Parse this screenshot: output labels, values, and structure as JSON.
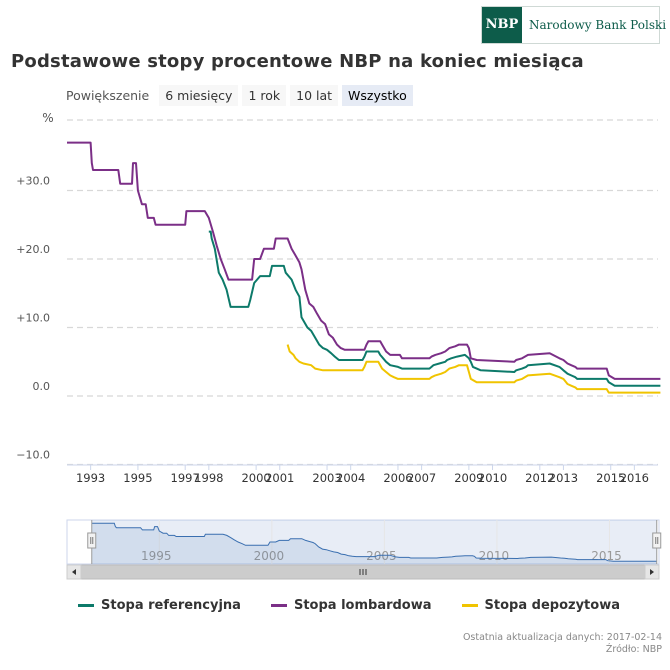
{
  "logo": {
    "abbr": "NBP",
    "name": "Narodowy Bank Polski"
  },
  "title": "Podstawowe stopy procentowe NBP na koniec miesiąca",
  "zoom": {
    "label": "Powiększenie",
    "buttons": [
      "6 miesięcy",
      "1 rok",
      "10 lat",
      "Wszystko"
    ],
    "active": "Wszystko"
  },
  "colors": {
    "referencyjna": "#0d7a6a",
    "lombardowa": "#7b2f87",
    "depozytowa": "#f0c400",
    "navigator": "#3a6fb0"
  },
  "footer": {
    "updated": "Ostatnia aktualizacja danych: 2017-02-14",
    "source": "Źródło: NBP"
  },
  "chart_data": {
    "type": "line",
    "ylabel": "%",
    "ytick_labels": [
      "+30.0",
      "+20.0",
      "+10.0",
      "0.0",
      "−10.0"
    ],
    "ytick_values": [
      30,
      20,
      10,
      0,
      -10
    ],
    "xtick_labels": [
      "1993",
      "1995",
      "1997",
      "1998",
      "2000",
      "2001",
      "2003",
      "2004",
      "2006",
      "2007",
      "2009",
      "2010",
      "2012",
      "2013",
      "2015",
      "2016"
    ],
    "xtick_years": [
      1993,
      1995,
      1997,
      1998,
      2000,
      2001,
      2003,
      2004,
      2006,
      2007,
      2009,
      2010,
      2012,
      2013,
      2015,
      2016
    ],
    "xlim": [
      1992.0,
      2017.0
    ],
    "ylim": [
      -10,
      40
    ],
    "grid": true,
    "legend_position": "bottom",
    "series": [
      {
        "name": "Stopa referencyjna",
        "color_key": "referencyjna",
        "points": [
          [
            1998.0,
            24
          ],
          [
            1998.08,
            24
          ],
          [
            1998.12,
            23
          ],
          [
            1998.25,
            21.5
          ],
          [
            1998.42,
            18
          ],
          [
            1998.58,
            17
          ],
          [
            1998.75,
            15.5
          ],
          [
            1998.92,
            13
          ],
          [
            1999.67,
            13
          ],
          [
            1999.75,
            14
          ],
          [
            1999.92,
            16.5
          ],
          [
            2000.17,
            17.5
          ],
          [
            2000.58,
            17.5
          ],
          [
            2000.67,
            19
          ],
          [
            2001.17,
            19
          ],
          [
            2001.25,
            18
          ],
          [
            2001.5,
            17
          ],
          [
            2001.67,
            15.5
          ],
          [
            2001.83,
            14.5
          ],
          [
            2001.92,
            11.5
          ],
          [
            2002.17,
            10
          ],
          [
            2002.33,
            9.5
          ],
          [
            2002.5,
            8.5
          ],
          [
            2002.67,
            7.5
          ],
          [
            2002.83,
            7
          ],
          [
            2003.0,
            6.75
          ],
          [
            2003.17,
            6.25
          ],
          [
            2003.33,
            5.75
          ],
          [
            2003.5,
            5.25
          ],
          [
            2004.5,
            5.25
          ],
          [
            2004.58,
            5.75
          ],
          [
            2004.67,
            6.5
          ],
          [
            2005.17,
            6.5
          ],
          [
            2005.25,
            6
          ],
          [
            2005.5,
            5
          ],
          [
            2005.67,
            4.5
          ],
          [
            2006.0,
            4.25
          ],
          [
            2006.17,
            4
          ],
          [
            2007.33,
            4
          ],
          [
            2007.42,
            4.25
          ],
          [
            2007.5,
            4.5
          ],
          [
            2007.75,
            4.75
          ],
          [
            2008.0,
            5
          ],
          [
            2008.08,
            5.25
          ],
          [
            2008.25,
            5.5
          ],
          [
            2008.5,
            5.75
          ],
          [
            2008.83,
            6
          ],
          [
            2009.0,
            5.5
          ],
          [
            2009.08,
            5
          ],
          [
            2009.17,
            4.25
          ],
          [
            2009.33,
            4
          ],
          [
            2009.5,
            3.75
          ],
          [
            2010.92,
            3.5
          ],
          [
            2011.0,
            3.75
          ],
          [
            2011.25,
            4
          ],
          [
            2011.42,
            4.25
          ],
          [
            2011.5,
            4.5
          ],
          [
            2012.42,
            4.75
          ],
          [
            2012.83,
            4.25
          ],
          [
            2012.92,
            4
          ],
          [
            2013.0,
            3.75
          ],
          [
            2013.17,
            3.25
          ],
          [
            2013.33,
            3
          ],
          [
            2013.5,
            2.75
          ],
          [
            2013.58,
            2.5
          ],
          [
            2014.83,
            2.5
          ],
          [
            2014.92,
            2
          ],
          [
            2015.17,
            1.5
          ],
          [
            2017.1,
            1.5
          ]
        ]
      },
      {
        "name": "Stopa lombardowa",
        "color_key": "lombardowa",
        "points": [
          [
            1992.0,
            37
          ],
          [
            1993.0,
            37
          ],
          [
            1993.05,
            34
          ],
          [
            1993.1,
            33
          ],
          [
            1994.17,
            33
          ],
          [
            1994.25,
            31
          ],
          [
            1994.75,
            31
          ],
          [
            1994.79,
            34
          ],
          [
            1994.92,
            34
          ],
          [
            1995.0,
            30
          ],
          [
            1995.17,
            28
          ],
          [
            1995.33,
            28
          ],
          [
            1995.42,
            26
          ],
          [
            1995.67,
            26
          ],
          [
            1995.75,
            25
          ],
          [
            1997.0,
            25
          ],
          [
            1997.05,
            27
          ],
          [
            1997.83,
            27
          ],
          [
            1998.0,
            26
          ],
          [
            1998.17,
            24
          ],
          [
            1998.33,
            22
          ],
          [
            1998.5,
            20
          ],
          [
            1998.67,
            18.5
          ],
          [
            1998.83,
            17
          ],
          [
            1999.83,
            17
          ],
          [
            1999.92,
            20
          ],
          [
            2000.17,
            20
          ],
          [
            2000.33,
            21.5
          ],
          [
            2000.75,
            21.5
          ],
          [
            2000.83,
            23
          ],
          [
            2001.33,
            23
          ],
          [
            2001.5,
            21.5
          ],
          [
            2001.67,
            20.5
          ],
          [
            2001.83,
            19.5
          ],
          [
            2001.92,
            18.5
          ],
          [
            2002.08,
            15.5
          ],
          [
            2002.25,
            13.5
          ],
          [
            2002.42,
            13
          ],
          [
            2002.58,
            12
          ],
          [
            2002.75,
            11
          ],
          [
            2002.92,
            10.5
          ],
          [
            2003.08,
            9
          ],
          [
            2003.25,
            8.5
          ],
          [
            2003.42,
            7.5
          ],
          [
            2003.58,
            7
          ],
          [
            2003.75,
            6.75
          ],
          [
            2004.58,
            6.75
          ],
          [
            2004.67,
            7.5
          ],
          [
            2004.75,
            8
          ],
          [
            2005.25,
            8
          ],
          [
            2005.33,
            7.5
          ],
          [
            2005.5,
            6.5
          ],
          [
            2005.67,
            6
          ],
          [
            2006.08,
            6
          ],
          [
            2006.17,
            5.5
          ],
          [
            2007.33,
            5.5
          ],
          [
            2007.42,
            5.75
          ],
          [
            2007.58,
            6
          ],
          [
            2007.83,
            6.25
          ],
          [
            2008.0,
            6.5
          ],
          [
            2008.17,
            7
          ],
          [
            2008.42,
            7.25
          ],
          [
            2008.58,
            7.5
          ],
          [
            2008.92,
            7.5
          ],
          [
            2009.0,
            7
          ],
          [
            2009.08,
            5.5
          ],
          [
            2009.33,
            5.25
          ],
          [
            2010.92,
            5
          ],
          [
            2011.0,
            5.25
          ],
          [
            2011.25,
            5.5
          ],
          [
            2011.5,
            6
          ],
          [
            2012.42,
            6.25
          ],
          [
            2012.83,
            5.5
          ],
          [
            2013.0,
            5.25
          ],
          [
            2013.17,
            4.75
          ],
          [
            2013.33,
            4.5
          ],
          [
            2013.5,
            4.25
          ],
          [
            2013.58,
            4
          ],
          [
            2014.83,
            4
          ],
          [
            2014.92,
            3
          ],
          [
            2015.17,
            2.5
          ],
          [
            2017.1,
            2.5
          ]
        ]
      },
      {
        "name": "Stopa depozytowa",
        "color_key": "depozytowa",
        "points": [
          [
            2001.33,
            7.5
          ],
          [
            2001.42,
            6.5
          ],
          [
            2001.58,
            6
          ],
          [
            2001.67,
            5.5
          ],
          [
            2001.83,
            5
          ],
          [
            2002.0,
            4.75
          ],
          [
            2002.33,
            4.5
          ],
          [
            2002.5,
            4
          ],
          [
            2002.83,
            3.75
          ],
          [
            2004.5,
            3.75
          ],
          [
            2004.58,
            4.25
          ],
          [
            2004.67,
            5
          ],
          [
            2005.17,
            5
          ],
          [
            2005.33,
            4
          ],
          [
            2005.5,
            3.5
          ],
          [
            2005.67,
            3
          ],
          [
            2005.83,
            2.75
          ],
          [
            2006.0,
            2.5
          ],
          [
            2007.33,
            2.5
          ],
          [
            2007.42,
            2.75
          ],
          [
            2007.58,
            3
          ],
          [
            2007.83,
            3.25
          ],
          [
            2008.0,
            3.5
          ],
          [
            2008.17,
            4
          ],
          [
            2008.42,
            4.25
          ],
          [
            2008.58,
            4.5
          ],
          [
            2008.92,
            4.5
          ],
          [
            2009.0,
            3.5
          ],
          [
            2009.08,
            2.5
          ],
          [
            2009.33,
            2
          ],
          [
            2010.92,
            2
          ],
          [
            2011.0,
            2.25
          ],
          [
            2011.25,
            2.5
          ],
          [
            2011.5,
            3
          ],
          [
            2012.42,
            3.25
          ],
          [
            2012.83,
            2.75
          ],
          [
            2013.0,
            2.5
          ],
          [
            2013.17,
            1.75
          ],
          [
            2013.33,
            1.5
          ],
          [
            2013.5,
            1.25
          ],
          [
            2013.58,
            1
          ],
          [
            2014.83,
            1
          ],
          [
            2014.92,
            0.5
          ],
          [
            2015.17,
            0.5
          ],
          [
            2017.1,
            0.5
          ]
        ]
      }
    ],
    "navigator": {
      "xtick_labels": [
        "1995",
        "2000",
        "2005",
        "2010",
        "2015"
      ],
      "xtick_years": [
        1995,
        2000,
        2005,
        2010,
        2015
      ],
      "xlim": [
        1990.9,
        2017.2
      ],
      "ylim": [
        0,
        40
      ],
      "selection": [
        1992.0,
        2017.1
      ]
    }
  }
}
